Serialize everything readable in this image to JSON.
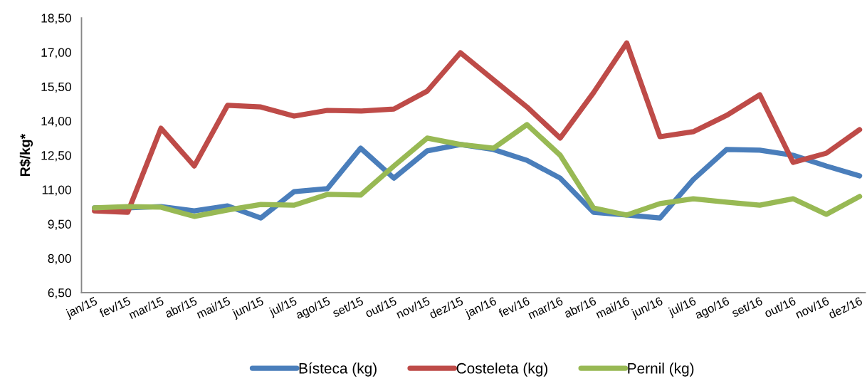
{
  "chart_data": {
    "type": "line",
    "ylabel": "R$/kg*",
    "categories": [
      "jan/15",
      "fev/15",
      "mar/15",
      "abr/15",
      "mai/15",
      "jun/15",
      "jul/15",
      "ago/15",
      "set/15",
      "out/15",
      "nov/15",
      "dez/15",
      "jan/16",
      "fev/16",
      "mar/16",
      "abr/16",
      "mai/16",
      "jun/16",
      "jul/16",
      "ago/16",
      "set/16",
      "out/16",
      "nov/16",
      "dez/16"
    ],
    "series": [
      {
        "name": "Bísteca (kg)",
        "color": "#4a7ebb",
        "values": [
          10.2,
          10.2,
          10.26,
          10.07,
          10.29,
          9.76,
          10.91,
          11.04,
          12.81,
          11.5,
          12.69,
          12.97,
          12.75,
          12.28,
          11.5,
          10.01,
          9.89,
          9.76,
          11.44,
          12.75,
          12.72,
          12.5,
          12.03,
          11.6
        ]
      },
      {
        "name": "Costeleta (kg)",
        "color": "#be4b48",
        "values": [
          10.07,
          10.01,
          13.68,
          12.03,
          14.68,
          14.61,
          14.21,
          14.46,
          14.43,
          14.52,
          15.3,
          16.98,
          15.79,
          14.61,
          13.25,
          15.23,
          17.41,
          13.31,
          13.53,
          14.24,
          15.14,
          12.19,
          12.59,
          13.62
        ]
      },
      {
        "name": "Pernil (kg)",
        "color": "#98b954",
        "values": [
          10.2,
          10.26,
          10.23,
          9.83,
          10.11,
          10.35,
          10.32,
          10.79,
          10.76,
          12.03,
          13.25,
          12.97,
          12.81,
          13.84,
          12.5,
          10.2,
          9.89,
          10.39,
          10.6,
          10.45,
          10.32,
          10.6,
          9.92,
          10.7
        ]
      }
    ],
    "ylim": [
      6.5,
      18.5
    ],
    "yticks": [
      {
        "value": 6.5,
        "label": "6,50"
      },
      {
        "value": 8.0,
        "label": "8,00"
      },
      {
        "value": 9.5,
        "label": "9,50"
      },
      {
        "value": 11.0,
        "label": "11,00"
      },
      {
        "value": 12.5,
        "label": "12,50"
      },
      {
        "value": 14.0,
        "label": "14,00"
      },
      {
        "value": 15.5,
        "label": "15,50"
      },
      {
        "value": 17.0,
        "label": "17,00"
      },
      {
        "value": 18.5,
        "label": "18,50"
      }
    ],
    "grid": false,
    "legend": "bottom",
    "marker": "none",
    "line_style": "solid"
  }
}
